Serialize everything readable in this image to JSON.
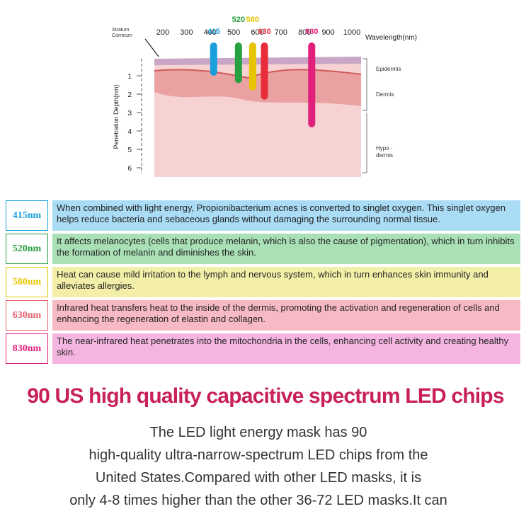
{
  "diagram": {
    "layer_label": [
      "Stratum",
      "Corneum"
    ],
    "x_label": "Wavelength(nm)",
    "y_label": "Penetration Depth(nm)",
    "xlim": [
      200,
      1000
    ],
    "xticks": [
      200,
      300,
      400,
      500,
      600,
      700,
      800,
      900,
      1000
    ],
    "ylim": [
      0,
      6
    ],
    "yticks": [
      1,
      2,
      3,
      4,
      5,
      6
    ],
    "lasers": [
      {
        "wavelength": 415,
        "depth": 1,
        "color": "#1a9fdc"
      },
      {
        "wavelength": 520,
        "depth": 1.4,
        "color": "#27a040"
      },
      {
        "wavelength": 580,
        "depth": 1.8,
        "color": "#e6c400"
      },
      {
        "wavelength": 630,
        "depth": 2.3,
        "color": "#e82c3a"
      },
      {
        "wavelength": 830,
        "depth": 3.8,
        "color": "#e0207a"
      }
    ],
    "layers": [
      [
        "Epidermis"
      ],
      [
        "Dermis"
      ],
      [
        "Hypo -",
        "dermis"
      ]
    ]
  },
  "table": {
    "rows": [
      {
        "label": "415nm",
        "text": "When combined with light energy, Propionibacterium acnes is converted to singlet oxygen. This singlet oxygen helps reduce bacteria and sebaceous glands without damaging the surrounding normal tissue.",
        "color": "#1a9fdc",
        "background": "#aadcf5"
      },
      {
        "label": "520nm",
        "text": "It affects melanocytes (cells that produce melanin, which is also the cause of pigmentation), which in turn inhibits the formation of melanin and diminishes the skin.",
        "color": "#27a040",
        "background": "#a9e0b5"
      },
      {
        "label": "580nm",
        "text": "Heat can cause mild irritation to the lymph and nervous system, which in turn enhances skin immunity and alleviates allergies.",
        "color": "#e6c400",
        "background": "#f4efa8"
      },
      {
        "label": "630nm",
        "text": "Infrared heat transfers heat to the inside of the dermis, promoting the activation and regeneration of cells and enhancing the regeneration of elastin and collagen.",
        "color": "#e8626f",
        "background": "#f7bac5"
      },
      {
        "label": "830nm",
        "text": "The near-infrared heat penetrates into the mitochondria in the cells, enhancing cell activity and creating healthy skin.",
        "color": "#e0207a",
        "background": "#f5b5e1"
      }
    ]
  },
  "heading": "90 US high quality capacitive spectrum LED chips",
  "paragraph": [
    "The LED light energy mask has 90",
    "high-quality ultra-narrow-spectrum LED chips from the",
    "United States.Compared with other LED masks, it is",
    "only 4-8 times higher than the other 36-72 LED masks.It can"
  ]
}
